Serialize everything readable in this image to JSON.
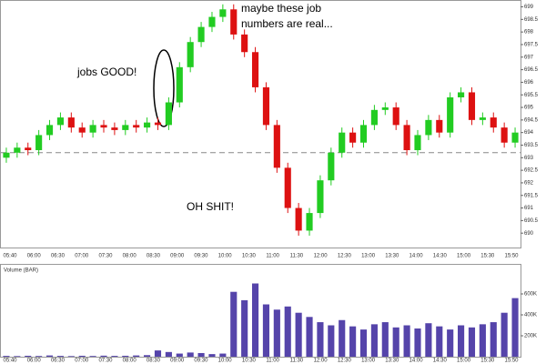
{
  "chart_data": [
    {
      "type": "candlestick",
      "annotations": [
        "jobs GOOD!",
        [
          "maybe these job",
          "numbers are real..."
        ],
        "OH SHIT!"
      ],
      "open": [
        693.0,
        693.2,
        693.4,
        693.3,
        693.9,
        694.3,
        694.6,
        694.2,
        694.0,
        694.3,
        694.2,
        694.1,
        694.3,
        694.2,
        694.4,
        694.3,
        695.2,
        696.6,
        697.6,
        698.2,
        698.6,
        698.9,
        697.9,
        697.2,
        695.8,
        694.3,
        692.6,
        691.0,
        690.1,
        690.8,
        692.1,
        693.2,
        694.0,
        693.6,
        694.3,
        694.9,
        695.0,
        694.3,
        693.3,
        693.9,
        694.5,
        694.0,
        695.4,
        695.6,
        694.5,
        694.6,
        694.2,
        693.6
      ],
      "high": [
        693.4,
        693.6,
        693.6,
        694.1,
        694.5,
        694.8,
        694.8,
        694.4,
        694.5,
        694.5,
        694.4,
        694.5,
        694.5,
        694.6,
        694.6,
        695.4,
        696.8,
        697.8,
        698.4,
        698.8,
        699.1,
        699.1,
        698.1,
        697.4,
        696.0,
        694.5,
        692.8,
        691.2,
        691.0,
        692.3,
        693.4,
        694.2,
        694.2,
        694.5,
        695.1,
        695.2,
        695.2,
        694.5,
        694.1,
        694.7,
        694.7,
        695.6,
        695.8,
        695.8,
        694.8,
        694.8,
        694.4,
        694.2
      ],
      "low": [
        692.8,
        693.0,
        693.1,
        693.1,
        693.7,
        694.1,
        694.0,
        693.8,
        693.8,
        694.0,
        693.9,
        693.9,
        694.0,
        694.0,
        694.1,
        694.1,
        695.0,
        696.4,
        697.4,
        698.0,
        698.4,
        697.7,
        697.0,
        695.6,
        694.1,
        692.4,
        690.8,
        689.9,
        689.9,
        690.6,
        691.9,
        693.0,
        693.4,
        693.4,
        694.1,
        694.7,
        694.1,
        693.1,
        693.1,
        693.7,
        693.8,
        693.8,
        695.2,
        694.3,
        694.3,
        694.0,
        693.4,
        693.4
      ],
      "close": [
        693.2,
        693.4,
        693.3,
        693.9,
        694.3,
        694.6,
        694.2,
        694.0,
        694.3,
        694.2,
        694.1,
        694.3,
        694.2,
        694.4,
        694.3,
        695.2,
        696.6,
        697.6,
        698.2,
        698.6,
        698.9,
        697.9,
        697.2,
        695.8,
        694.3,
        692.6,
        691.0,
        690.1,
        690.8,
        692.1,
        693.2,
        694.0,
        693.6,
        694.3,
        694.9,
        695.0,
        694.3,
        693.3,
        693.9,
        694.5,
        694.0,
        695.4,
        695.6,
        694.5,
        694.6,
        694.2,
        693.6,
        694.0
      ],
      "up_color": "#22cc22",
      "down_color": "#dd1111",
      "reference_line": 693.2,
      "ylim": [
        689.5,
        699.2
      ],
      "yticks": [
        690,
        690.5,
        691,
        691.5,
        692,
        692.5,
        693,
        693.5,
        694,
        694.5,
        695,
        695.5,
        696,
        696.5,
        697,
        697.5,
        698,
        698.5,
        699
      ],
      "time_labels": [
        "05:40",
        "06:00",
        "06:30",
        "07:00",
        "07:30",
        "08:00",
        "08:30",
        "09:00",
        "09:30",
        "10:00",
        "10:30",
        "11:00",
        "11:30",
        "12:00",
        "12:30",
        "13:00",
        "13:30",
        "14:00",
        "14:30",
        "15:00",
        "15:30",
        "15:50"
      ]
    },
    {
      "type": "bar",
      "title": "Volume (BAR)",
      "values": [
        8000,
        6000,
        9000,
        7000,
        12000,
        8000,
        6000,
        9000,
        7000,
        10000,
        8000,
        9000,
        12000,
        15000,
        60000,
        45000,
        30000,
        40000,
        35000,
        25000,
        30000,
        620000,
        540000,
        700000,
        500000,
        450000,
        480000,
        420000,
        380000,
        330000,
        300000,
        350000,
        290000,
        260000,
        310000,
        330000,
        280000,
        300000,
        270000,
        320000,
        290000,
        260000,
        300000,
        280000,
        310000,
        330000,
        420000,
        560000
      ],
      "color": "#5544aa",
      "ylim": [
        0,
        800000
      ],
      "yticks": [
        {
          "value": 200000,
          "label": "200K"
        },
        {
          "value": 400000,
          "label": "400K"
        },
        {
          "value": 600000,
          "label": "600K"
        }
      ]
    }
  ]
}
